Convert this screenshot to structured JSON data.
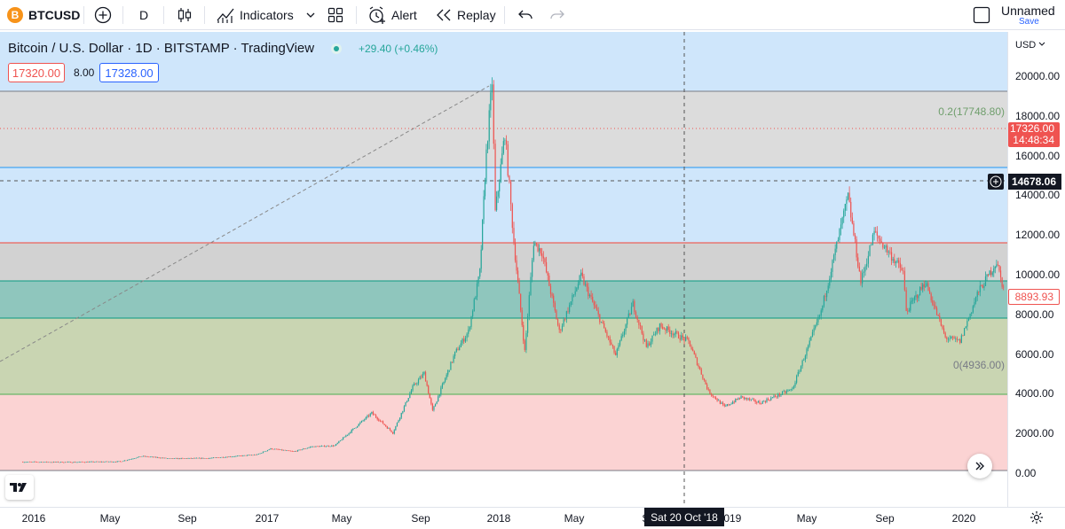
{
  "toolbar": {
    "symbol": "BTCUSD",
    "symbol_logo": "B",
    "interval": "D",
    "indicators_label": "Indicators",
    "alert_label": "Alert",
    "replay_label": "Replay",
    "layout_name": "Unnamed",
    "save_label": "Save",
    "icons": [
      "plus-circle-icon",
      "candles-icon",
      "indicators-icon",
      "chevron-down-icon",
      "layout-grid-icon",
      "alarm-clock-icon",
      "replay-icon",
      "undo-icon",
      "redo-icon",
      "checkbox-icon"
    ]
  },
  "legend": {
    "title": "Bitcoin / U.S. Dollar · 1D · BITSTAMP · TradingView",
    "change": "+29.40 (+0.46%)",
    "bid": "17320.00",
    "spread": "8.00",
    "ask": "17328.00"
  },
  "fib": {
    "label_02": "0.2(17748.80)",
    "label_0": "0(4936.00)"
  },
  "price_axis": {
    "currency": "USD",
    "ticks": [
      "20000.00",
      "18000.00",
      "16000.00",
      "14000.00",
      "12000.00",
      "10000.00",
      "8000.00",
      "6000.00",
      "4000.00",
      "2000.00",
      "0.00"
    ],
    "current_price": "17326.00",
    "countdown": "14:48:34",
    "crosshair_price": "14678.06",
    "last_close": "8893.93"
  },
  "time_axis": {
    "ticks": [
      "2016",
      "May",
      "Sep",
      "2017",
      "May",
      "Sep",
      "2018",
      "May",
      "Sep",
      "2019",
      "May",
      "Sep",
      "2020"
    ],
    "crosshair_date": "Sat 20 Oct '18"
  },
  "colors": {
    "up": "#26a69a",
    "down": "#ef5350",
    "accent": "#2962ff",
    "band_blue": "#cde4fb",
    "band_gray": "#dcdcdc",
    "band_teal": "#8dc4bb",
    "band_olive": "#c8d4b1",
    "band_pink": "#fbd2d2"
  },
  "chart_data": {
    "type": "candlestick",
    "title": "Bitcoin / U.S. Dollar · 1D · BITSTAMP · TradingView",
    "ylim": [
      0,
      20000
    ],
    "points": [
      [
        "2015-12-15",
        430
      ],
      [
        "2016-03-01",
        420
      ],
      [
        "2016-05-15",
        450
      ],
      [
        "2016-06-18",
        720
      ],
      [
        "2016-08-01",
        600
      ],
      [
        "2016-10-01",
        620
      ],
      [
        "2016-12-15",
        800
      ],
      [
        "2017-01-05",
        1100
      ],
      [
        "2017-02-10",
        950
      ],
      [
        "2017-03-10",
        1200
      ],
      [
        "2017-04-15",
        1250
      ],
      [
        "2017-05-25",
        2400
      ],
      [
        "2017-06-12",
        2900
      ],
      [
        "2017-07-15",
        1900
      ],
      [
        "2017-08-15",
        4200
      ],
      [
        "2017-09-02",
        4900
      ],
      [
        "2017-09-15",
        3000
      ],
      [
        "2017-10-20",
        5900
      ],
      [
        "2017-11-10",
        7000
      ],
      [
        "2017-11-28",
        10000
      ],
      [
        "2017-12-08",
        16000
      ],
      [
        "2017-12-17",
        19600
      ],
      [
        "2017-12-22",
        13000
      ],
      [
        "2018-01-06",
        17000
      ],
      [
        "2018-01-20",
        11500
      ],
      [
        "2018-02-06",
        6000
      ],
      [
        "2018-02-20",
        11500
      ],
      [
        "2018-03-05",
        11000
      ],
      [
        "2018-04-01",
        7000
      ],
      [
        "2018-05-05",
        9800
      ],
      [
        "2018-06-28",
        5800
      ],
      [
        "2018-07-25",
        8400
      ],
      [
        "2018-08-15",
        6200
      ],
      [
        "2018-09-05",
        7300
      ],
      [
        "2018-10-20",
        6500
      ],
      [
        "2018-11-20",
        4000
      ],
      [
        "2018-12-15",
        3200
      ],
      [
        "2019-01-10",
        3700
      ],
      [
        "2019-02-08",
        3400
      ],
      [
        "2019-03-31",
        4100
      ],
      [
        "2019-05-15",
        8000
      ],
      [
        "2019-06-26",
        13800
      ],
      [
        "2019-07-16",
        9500
      ],
      [
        "2019-08-06",
        12000
      ],
      [
        "2019-09-20",
        10000
      ],
      [
        "2019-09-25",
        8000
      ],
      [
        "2019-10-25",
        9500
      ],
      [
        "2019-11-25",
        6700
      ],
      [
        "2019-12-18",
        6500
      ],
      [
        "2020-01-14",
        8900
      ],
      [
        "2020-02-13",
        10500
      ],
      [
        "2020-02-26",
        8893.93
      ]
    ]
  }
}
